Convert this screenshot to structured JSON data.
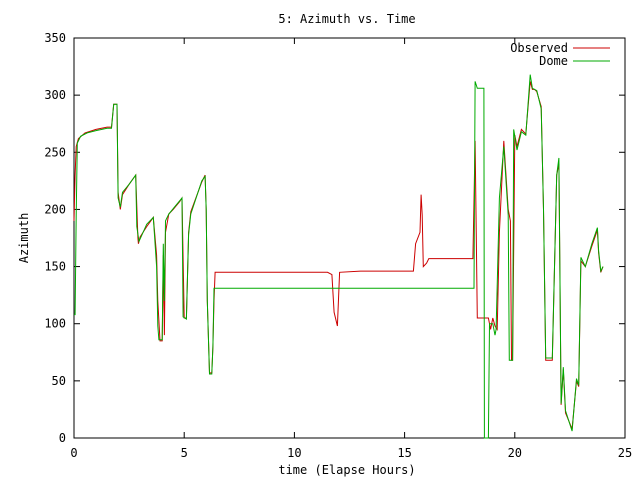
{
  "chart_data": {
    "type": "line",
    "title": "5: Azimuth vs. Time",
    "xlabel": "time (Elapse Hours)",
    "ylabel": "Azimuth",
    "xlim": [
      0,
      25
    ],
    "ylim": [
      0,
      350
    ],
    "xticks": [
      0,
      5,
      10,
      15,
      20,
      25
    ],
    "yticks": [
      0,
      50,
      100,
      150,
      200,
      250,
      300,
      350
    ],
    "legend_position": "top-right",
    "grid": false,
    "series": [
      {
        "name": "Observed",
        "color": "#cc0000",
        "points": [
          [
            0,
            190
          ],
          [
            0.05,
            230
          ],
          [
            0.1,
            255
          ],
          [
            0.2,
            262
          ],
          [
            0.5,
            267
          ],
          [
            1.0,
            270
          ],
          [
            1.5,
            272
          ],
          [
            1.7,
            272
          ],
          [
            1.8,
            292
          ],
          [
            1.95,
            292
          ],
          [
            2.0,
            215
          ],
          [
            2.1,
            200
          ],
          [
            2.2,
            213
          ],
          [
            2.5,
            222
          ],
          [
            2.8,
            230
          ],
          [
            2.9,
            175
          ],
          [
            2.92,
            170
          ],
          [
            3.0,
            176
          ],
          [
            3.3,
            185
          ],
          [
            3.6,
            193
          ],
          [
            3.75,
            160
          ],
          [
            3.8,
            120
          ],
          [
            3.9,
            85
          ],
          [
            4.0,
            85
          ],
          [
            4.05,
            160
          ],
          [
            4.1,
            90
          ],
          [
            4.15,
            180
          ],
          [
            4.3,
            196
          ],
          [
            4.5,
            200
          ],
          [
            4.8,
            207
          ],
          [
            4.9,
            210
          ],
          [
            5.0,
            105
          ],
          [
            5.1,
            105
          ],
          [
            5.2,
            180
          ],
          [
            5.3,
            198
          ],
          [
            5.8,
            224
          ],
          [
            5.95,
            230
          ],
          [
            6.0,
            200
          ],
          [
            6.05,
            120
          ],
          [
            6.15,
            57
          ],
          [
            6.25,
            57
          ],
          [
            6.3,
            80
          ],
          [
            6.35,
            120
          ],
          [
            6.4,
            145
          ],
          [
            7,
            145
          ],
          [
            9,
            145
          ],
          [
            11.5,
            145
          ],
          [
            11.7,
            143
          ],
          [
            11.8,
            110
          ],
          [
            11.95,
            98
          ],
          [
            12.05,
            145
          ],
          [
            13,
            146
          ],
          [
            15,
            146
          ],
          [
            15.4,
            146
          ],
          [
            15.5,
            170
          ],
          [
            15.7,
            180
          ],
          [
            15.75,
            213
          ],
          [
            15.8,
            195
          ],
          [
            15.85,
            150
          ],
          [
            16.0,
            153
          ],
          [
            16.1,
            157
          ],
          [
            17,
            157
          ],
          [
            18.0,
            157
          ],
          [
            18.1,
            157
          ],
          [
            18.2,
            260
          ],
          [
            18.3,
            105
          ],
          [
            18.5,
            105
          ],
          [
            18.8,
            105
          ],
          [
            18.9,
            95
          ],
          [
            19.0,
            105
          ],
          [
            19.1,
            98
          ],
          [
            19.2,
            95
          ],
          [
            19.3,
            180
          ],
          [
            19.5,
            260
          ],
          [
            19.7,
            200
          ],
          [
            19.8,
            190
          ],
          [
            19.85,
            68
          ],
          [
            19.9,
            68
          ],
          [
            20.0,
            265
          ],
          [
            20.1,
            255
          ],
          [
            20.3,
            270
          ],
          [
            20.5,
            266
          ],
          [
            20.7,
            312
          ],
          [
            20.8,
            305
          ],
          [
            20.9,
            305
          ],
          [
            21.0,
            303
          ],
          [
            21.2,
            290
          ],
          [
            21.3,
            200
          ],
          [
            21.4,
            68
          ],
          [
            21.6,
            68
          ],
          [
            21.7,
            68
          ],
          [
            21.9,
            230
          ],
          [
            22.0,
            240
          ],
          [
            22.1,
            29
          ],
          [
            22.2,
            60
          ],
          [
            22.3,
            22
          ],
          [
            22.6,
            8
          ],
          [
            22.8,
            50
          ],
          [
            22.9,
            45
          ],
          [
            23.0,
            155
          ],
          [
            23.2,
            150
          ],
          [
            23.5,
            168
          ],
          [
            23.75,
            182
          ],
          [
            23.8,
            162
          ],
          [
            23.9,
            145
          ],
          [
            24.0,
            150
          ]
        ]
      },
      {
        "name": "Dome",
        "color": "#00aa00",
        "points": [
          [
            0,
            108
          ],
          [
            0.05,
            108
          ],
          [
            0.1,
            195
          ],
          [
            0.15,
            258
          ],
          [
            0.3,
            264
          ],
          [
            0.6,
            267
          ],
          [
            1.0,
            269
          ],
          [
            1.5,
            271
          ],
          [
            1.7,
            271
          ],
          [
            1.8,
            292
          ],
          [
            1.95,
            292
          ],
          [
            2.0,
            210
          ],
          [
            2.1,
            202
          ],
          [
            2.2,
            215
          ],
          [
            2.5,
            222
          ],
          [
            2.8,
            230
          ],
          [
            2.85,
            185
          ],
          [
            2.95,
            172
          ],
          [
            3.3,
            187
          ],
          [
            3.6,
            193
          ],
          [
            3.75,
            150
          ],
          [
            3.8,
            98
          ],
          [
            3.85,
            86
          ],
          [
            4.0,
            86
          ],
          [
            4.05,
            170
          ],
          [
            4.1,
            120
          ],
          [
            4.15,
            190
          ],
          [
            4.3,
            196
          ],
          [
            4.6,
            203
          ],
          [
            4.9,
            210
          ],
          [
            4.95,
            106
          ],
          [
            5.1,
            104
          ],
          [
            5.2,
            178
          ],
          [
            5.3,
            196
          ],
          [
            5.8,
            225
          ],
          [
            5.95,
            229
          ],
          [
            6.0,
            200
          ],
          [
            6.05,
            120
          ],
          [
            6.15,
            56
          ],
          [
            6.25,
            56
          ],
          [
            6.3,
            80
          ],
          [
            6.35,
            131
          ],
          [
            8,
            131
          ],
          [
            10,
            131
          ],
          [
            12,
            131
          ],
          [
            14,
            131
          ],
          [
            16,
            131
          ],
          [
            18.1,
            131
          ],
          [
            18.15,
            131
          ],
          [
            18.2,
            312
          ],
          [
            18.3,
            306
          ],
          [
            18.6,
            306
          ],
          [
            18.62,
            0
          ],
          [
            18.8,
            0
          ],
          [
            18.85,
            100
          ],
          [
            19.0,
            100
          ],
          [
            19.1,
            90
          ],
          [
            19.15,
            95
          ],
          [
            19.3,
            210
          ],
          [
            19.5,
            255
          ],
          [
            19.7,
            195
          ],
          [
            19.75,
            68
          ],
          [
            19.9,
            68
          ],
          [
            19.95,
            270
          ],
          [
            20.1,
            252
          ],
          [
            20.3,
            268
          ],
          [
            20.5,
            265
          ],
          [
            20.7,
            318
          ],
          [
            20.8,
            306
          ],
          [
            21.0,
            304
          ],
          [
            21.2,
            288
          ],
          [
            21.3,
            200
          ],
          [
            21.4,
            70
          ],
          [
            21.6,
            70
          ],
          [
            21.7,
            70
          ],
          [
            21.9,
            230
          ],
          [
            22.0,
            245
          ],
          [
            22.1,
            30
          ],
          [
            22.2,
            62
          ],
          [
            22.3,
            24
          ],
          [
            22.6,
            6
          ],
          [
            22.8,
            52
          ],
          [
            22.9,
            46
          ],
          [
            23.0,
            158
          ],
          [
            23.2,
            150
          ],
          [
            23.5,
            170
          ],
          [
            23.75,
            184
          ],
          [
            23.8,
            164
          ],
          [
            23.9,
            146
          ],
          [
            24.0,
            150
          ]
        ]
      }
    ]
  }
}
